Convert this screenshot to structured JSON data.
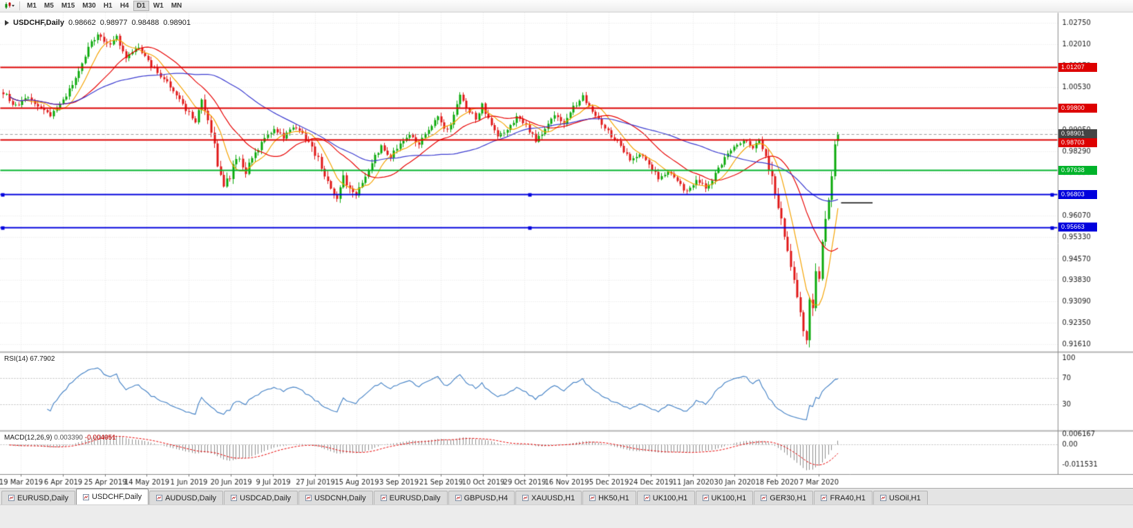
{
  "app": {
    "toolbar": {
      "timeframes": [
        "M1",
        "M5",
        "M15",
        "M30",
        "H1",
        "H4",
        "D1",
        "W1",
        "MN"
      ],
      "active_timeframe": "D1"
    },
    "tabs": [
      {
        "label": "EURUSD,Daily",
        "active": false
      },
      {
        "label": "USDCHF,Daily",
        "active": true
      },
      {
        "label": "AUDUSD,Daily",
        "active": false
      },
      {
        "label": "USDCAD,Daily",
        "active": false
      },
      {
        "label": "USDCNH,Daily",
        "active": false
      },
      {
        "label": "EURUSD,Daily",
        "active": false
      },
      {
        "label": "GBPUSD,H4",
        "active": false
      },
      {
        "label": "XAUUSD,H1",
        "active": false
      },
      {
        "label": "HK50,H1",
        "active": false
      },
      {
        "label": "UK100,H1",
        "active": false
      },
      {
        "label": "UK100,H1",
        "active": false
      },
      {
        "label": "GER30,H1",
        "active": false
      },
      {
        "label": "FRA40,H1",
        "active": false
      },
      {
        "label": "USOil,H1",
        "active": false
      }
    ]
  },
  "chart_data": {
    "type": "candlestick",
    "symbol": "USDCHF",
    "timeframe": "Daily",
    "symbol_label": "USDCHF,Daily",
    "header_ohlc": {
      "open": "0.98662",
      "high": "0.98977",
      "low": "0.98488",
      "close": "0.98901"
    },
    "y_axis_ticks": [
      "1.02750",
      "1.02010",
      "1.01270",
      "1.00530",
      "0.99790",
      "0.99050",
      "0.98290",
      "0.97550",
      "0.96810",
      "0.96070",
      "0.95330",
      "0.94570",
      "0.93830",
      "0.93090",
      "0.92350",
      "0.91610"
    ],
    "x_axis_labels": [
      "19 Mar 2019",
      "6 Apr 2019",
      "25 Apr 2019",
      "14 May 2019",
      "1 Jun 2019",
      "20 Jun 2019",
      "9 Jul 2019",
      "27 Jul 2019",
      "15 Aug 2019",
      "3 Sep 2019",
      "21 Sep 2019",
      "10 Oct 2019",
      "29 Oct 2019",
      "16 Nov 2019",
      "5 Dec 2019",
      "24 Dec 2019",
      "11 Jan 2020",
      "30 Jan 2020",
      "18 Feb 2020",
      "7 Mar 2020"
    ],
    "levels": [
      {
        "label": "1.01207",
        "price": 1.01207,
        "color": "#dd0000",
        "kind": "resistance-line",
        "handles": false
      },
      {
        "label": "0.99800",
        "price": 0.998,
        "color": "#dd0000",
        "kind": "resistance-line",
        "handles": false
      },
      {
        "label": "0.98901",
        "price": 0.98901,
        "color": "#444444",
        "kind": "current-price",
        "handles": false
      },
      {
        "label": "0.98703",
        "price": 0.98703,
        "color": "#dd0000",
        "kind": "resistance-line",
        "handles": false
      },
      {
        "label": "0.97638",
        "price": 0.97638,
        "color": "#00b32a",
        "kind": "support-line",
        "handles": false
      },
      {
        "label": "0.96803",
        "price": 0.96803,
        "color": "#0000dd",
        "kind": "support-line",
        "handles": true
      },
      {
        "label": "0.95663",
        "price": 0.95663,
        "color": "#0000dd",
        "kind": "support-line",
        "handles": true
      }
    ],
    "objects": [
      {
        "kind": "trendline-segment",
        "price": 0.9652,
        "from_candle": 266,
        "to_candle": 276,
        "color": "#000000"
      }
    ],
    "candle_count": 266,
    "up_color": "#09a909",
    "down_color": "#e01616",
    "price_path_anchors": [
      [
        0,
        1.0035
      ],
      [
        4,
        0.9985
      ],
      [
        8,
        1.0015
      ],
      [
        12,
        0.998
      ],
      [
        15,
        0.9955
      ],
      [
        19,
        1.0005
      ],
      [
        23,
        1.008
      ],
      [
        27,
        1.019
      ],
      [
        30,
        1.0235
      ],
      [
        33,
        1.02
      ],
      [
        36,
        1.0225
      ],
      [
        39,
        1.016
      ],
      [
        43,
        1.019
      ],
      [
        47,
        1.0125
      ],
      [
        51,
        1.0085
      ],
      [
        55,
        1.003
      ],
      [
        58,
        0.9975
      ],
      [
        61,
        0.9935
      ],
      [
        63,
        1.0
      ],
      [
        66,
        0.9905
      ],
      [
        68,
        0.979
      ],
      [
        70,
        0.9712
      ],
      [
        72,
        0.9745
      ],
      [
        74,
        0.981
      ],
      [
        77,
        0.976
      ],
      [
        80,
        0.982
      ],
      [
        83,
        0.988
      ],
      [
        86,
        0.991
      ],
      [
        89,
        0.988
      ],
      [
        92,
        0.9915
      ],
      [
        95,
        0.989
      ],
      [
        98,
        0.9845
      ],
      [
        101,
        0.978
      ],
      [
        104,
        0.9695
      ],
      [
        106,
        0.9665
      ],
      [
        108,
        0.974
      ],
      [
        110,
        0.97
      ],
      [
        112,
        0.967
      ],
      [
        114,
        0.9725
      ],
      [
        117,
        0.9795
      ],
      [
        120,
        0.9845
      ],
      [
        123,
        0.981
      ],
      [
        126,
        0.986
      ],
      [
        129,
        0.989
      ],
      [
        132,
        0.9855
      ],
      [
        135,
        0.9905
      ],
      [
        138,
        0.9945
      ],
      [
        141,
        0.99
      ],
      [
        143,
        0.996
      ],
      [
        145,
        1.0025
      ],
      [
        147,
        0.998
      ],
      [
        150,
        0.9945
      ],
      [
        152,
        0.999
      ],
      [
        154,
        0.994
      ],
      [
        157,
        0.988
      ],
      [
        160,
        0.9905
      ],
      [
        163,
        0.995
      ],
      [
        166,
        0.992
      ],
      [
        169,
        0.987
      ],
      [
        172,
        0.9905
      ],
      [
        175,
        0.9955
      ],
      [
        178,
        0.993
      ],
      [
        181,
        0.9985
      ],
      [
        184,
        1.002
      ],
      [
        187,
        0.9975
      ],
      [
        190,
        0.993
      ],
      [
        193,
        0.9885
      ],
      [
        196,
        0.985
      ],
      [
        199,
        0.98
      ],
      [
        202,
        0.9825
      ],
      [
        205,
        0.9785
      ],
      [
        208,
        0.974
      ],
      [
        211,
        0.9765
      ],
      [
        214,
        0.9725
      ],
      [
        217,
        0.969
      ],
      [
        220,
        0.9735
      ],
      [
        223,
        0.9705
      ],
      [
        226,
        0.975
      ],
      [
        229,
        0.9805
      ],
      [
        232,
        0.9845
      ],
      [
        235,
        0.9875
      ],
      [
        238,
        0.9845
      ],
      [
        240,
        0.987
      ],
      [
        242,
        0.982
      ],
      [
        244,
        0.9745
      ],
      [
        246,
        0.965
      ],
      [
        248,
        0.9545
      ],
      [
        250,
        0.944
      ],
      [
        252,
        0.932
      ],
      [
        254,
        0.9195
      ],
      [
        255,
        0.9165
      ],
      [
        256,
        0.933
      ],
      [
        257,
        0.929
      ],
      [
        258,
        0.943
      ],
      [
        259,
        0.94
      ],
      [
        260,
        0.952
      ],
      [
        261,
        0.958
      ],
      [
        262,
        0.965
      ],
      [
        263,
        0.976
      ],
      [
        264,
        0.985
      ],
      [
        265,
        0.989
      ]
    ],
    "moving_averages": [
      {
        "name": "ma-fast",
        "period": 8,
        "color": "#f5a300"
      },
      {
        "name": "ma-mid",
        "period": 21,
        "color": "#e80000"
      },
      {
        "name": "ma-slow",
        "period": 50,
        "color": "#3a3ad0"
      }
    ],
    "indicators": {
      "rsi": {
        "label": "RSI(14)",
        "value": "67.7902",
        "period": 14,
        "axis_ticks": [
          [
            "100",
            100
          ],
          [
            "70",
            70
          ],
          [
            "30",
            30
          ]
        ],
        "guide_levels": [
          70,
          30
        ],
        "line_color": "#4a86c8"
      },
      "macd": {
        "label": "MACD(12,26,9)",
        "value_main": "0.003390",
        "value_signal": "-0.004051",
        "fast": 12,
        "slow": 26,
        "signal": 9,
        "axis_max_label": "0.006167",
        "axis_zero_label": "0.00",
        "axis_min_label": "-0.011531",
        "axis_max": 0.006167,
        "axis_min": -0.011531,
        "histogram_color": "#8c8c8c",
        "signal_color": "#e80000"
      }
    }
  }
}
